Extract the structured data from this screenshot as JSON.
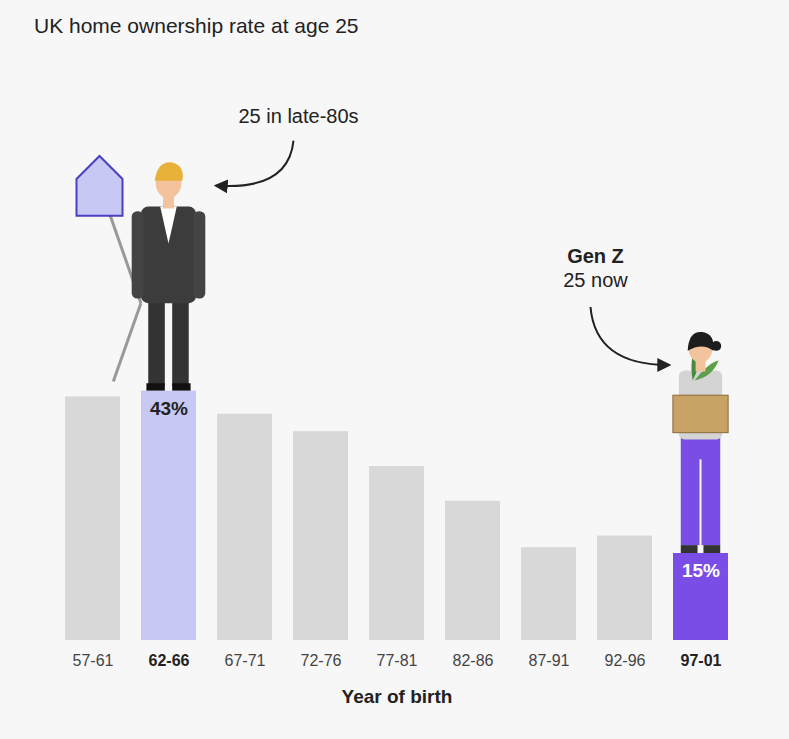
{
  "chart_data": {
    "type": "bar",
    "title": "UK home ownership rate at age 25",
    "x_label": "Year of birth",
    "categories": [
      "57-61",
      "62-66",
      "67-71",
      "72-76",
      "77-81",
      "82-86",
      "87-91",
      "92-96",
      "97-01"
    ],
    "values": [
      42,
      43,
      39,
      36,
      30,
      24,
      16,
      18,
      15
    ],
    "value_labels": [
      null,
      "43%",
      null,
      null,
      null,
      null,
      null,
      null,
      "15%"
    ],
    "data_labels": true,
    "colors": [
      "#d8d8d8",
      "#c8c8f5",
      "#d8d8d8",
      "#d8d8d8",
      "#d8d8d8",
      "#d8d8d8",
      "#d8d8d8",
      "#d8d8d8",
      "#7a4ee6"
    ],
    "ylim": [
      0,
      100
    ],
    "tick_labels": "x",
    "grid": false,
    "annotations": [
      {
        "category": "62-66",
        "text": [
          "25 in late-80s"
        ]
      },
      {
        "category": "97-01",
        "text": [
          "Gen Z",
          "25 now"
        ]
      }
    ]
  }
}
